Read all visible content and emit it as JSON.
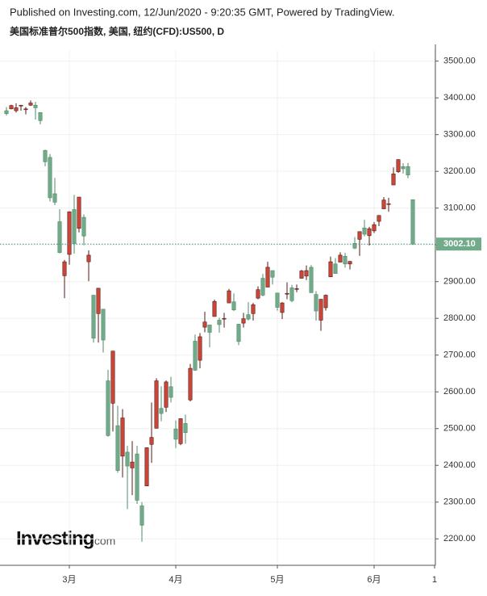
{
  "header": "Published on Investing.com, 12/Jun/2020 - 9:20:35 GMT, Powered by TradingView.",
  "logo": "Investing",
  "logo_suffix": ".com",
  "chart_data": {
    "type": "candlestick",
    "title": "美国标准普尔500指数, 美国, 纽约(CFD):US500, D",
    "up_color": "#c9473a",
    "down_color": "#72ab8a",
    "grid": true,
    "xlim": [
      -1.333,
      88.667
    ],
    "xticks": [
      {
        "value": 13,
        "label": "3月"
      },
      {
        "value": 35,
        "label": "4月"
      },
      {
        "value": 56,
        "label": "5月"
      },
      {
        "value": 76,
        "label": "6月"
      },
      {
        "value": 88.5,
        "label": "1"
      }
    ],
    "ylim": [
      2128,
      3530
    ],
    "yticks": [
      {
        "value": 2200,
        "label": "2200.00"
      },
      {
        "value": 2300,
        "label": "2300.00"
      },
      {
        "value": 2400,
        "label": "2400.00"
      },
      {
        "value": 2500,
        "label": "2500.00"
      },
      {
        "value": 2600,
        "label": "2600.00"
      },
      {
        "value": 2700,
        "label": "2700.00"
      },
      {
        "value": 2800,
        "label": "2800.00"
      },
      {
        "value": 2900,
        "label": "2900.00"
      },
      {
        "value": 3000,
        "label": "3000.00"
      },
      {
        "value": 3100,
        "label": "3100.00"
      },
      {
        "value": 3200,
        "label": "3200.00"
      },
      {
        "value": 3300,
        "label": "3300.00"
      },
      {
        "value": 3400,
        "label": "3400.00"
      },
      {
        "value": 3500,
        "label": "3500.00"
      }
    ],
    "last_price": {
      "value": 3002.1,
      "label": "3002.10"
    },
    "open": [
      3365,
      3370,
      3365,
      3378,
      3369,
      3380,
      3380,
      3360,
      3257,
      3238,
      3139,
      3063,
      2916,
      2974,
      3096,
      3045,
      3075,
      2954,
      2863,
      2813,
      2825,
      2630,
      2569,
      2508,
      2425,
      2436,
      2393,
      2431,
      2290,
      2344,
      2457,
      2501,
      2555,
      2558,
      2614,
      2499,
      2459,
      2514,
      2578,
      2738,
      2686,
      2776,
      2782,
      2805,
      2795,
      2799,
      2842,
      2845,
      2784,
      2787,
      2810,
      2813,
      2855,
      2909,
      2885,
      2930,
      2869,
      2816,
      2868,
      2883,
      2879,
      2909,
      2915,
      2939,
      2865,
      2795,
      2829,
      2913,
      2948,
      2953,
      2969,
      2948,
      3004,
      3015,
      3046,
      3025,
      3038,
      3064,
      3098,
      3111,
      3163,
      3199,
      3213,
      3213,
      3123
    ],
    "high": [
      3375,
      3381,
      3385,
      3380,
      3375,
      3393,
      3389,
      3360,
      3259,
      3247,
      3182,
      3097,
      2959,
      3091,
      3136,
      3130,
      3083,
      2985,
      2863,
      2882,
      2825,
      2660,
      2711,
      2562,
      2553,
      2453,
      2466,
      2453,
      2300,
      2449,
      2571,
      2637,
      2615,
      2631,
      2641,
      2522,
      2528,
      2538,
      2676,
      2756,
      2760,
      2818,
      2782,
      2851,
      2802,
      2815,
      2880,
      2868,
      2785,
      2815,
      2844,
      2842,
      2887,
      2921,
      2954,
      2930,
      2869,
      2844,
      2898,
      2891,
      2892,
      2932,
      2944,
      2945,
      2874,
      2852,
      2865,
      2968,
      2964,
      2980,
      2978,
      2956,
      3021,
      3036,
      3068,
      3049,
      3062,
      3081,
      3130,
      3128,
      3211,
      3233,
      3222,
      3223,
      3123
    ],
    "low": [
      3352,
      3369,
      3360,
      3365,
      3355,
      3378,
      3341,
      3328,
      3214,
      3118,
      3108,
      2977,
      2855,
      2946,
      2976,
      3034,
      2999,
      2901,
      2734,
      2734,
      2707,
      2478,
      2492,
      2380,
      2367,
      2281,
      2319,
      2295,
      2192,
      2344,
      2407,
      2500,
      2520,
      2545,
      2571,
      2447,
      2455,
      2459,
      2574,
      2657,
      2664,
      2762,
      2721,
      2805,
      2761,
      2775,
      2842,
      2820,
      2727,
      2775,
      2794,
      2794,
      2852,
      2860,
      2885,
      2892,
      2821,
      2798,
      2852,
      2844,
      2871,
      2909,
      2904,
      2869,
      2794,
      2766,
      2821,
      2913,
      2922,
      2953,
      2938,
      2933,
      2988,
      2970,
      3023,
      2998,
      3032,
      3051,
      3098,
      3090,
      3163,
      3196,
      3194,
      3181,
      3000
    ],
    "close": [
      3357,
      3379,
      3373,
      3380,
      3370,
      3386,
      3373,
      3338,
      3226,
      3128,
      3116,
      2979,
      2954,
      3090,
      3003,
      3130,
      3024,
      2972,
      2746,
      2882,
      2741,
      2481,
      2711,
      2386,
      2529,
      2398,
      2409,
      2305,
      2237,
      2448,
      2476,
      2630,
      2541,
      2627,
      2585,
      2471,
      2527,
      2489,
      2664,
      2659,
      2750,
      2790,
      2762,
      2846,
      2783,
      2800,
      2875,
      2823,
      2737,
      2799,
      2798,
      2837,
      2878,
      2863,
      2939,
      2912,
      2830,
      2842,
      2868,
      2848,
      2881,
      2929,
      2930,
      2870,
      2820,
      2852,
      2863,
      2954,
      2922,
      2972,
      2948,
      2955,
      2991,
      3036,
      3029,
      3044,
      3055,
      3080,
      3122,
      3112,
      3193,
      3232,
      3207,
      3190,
      3002
    ]
  }
}
